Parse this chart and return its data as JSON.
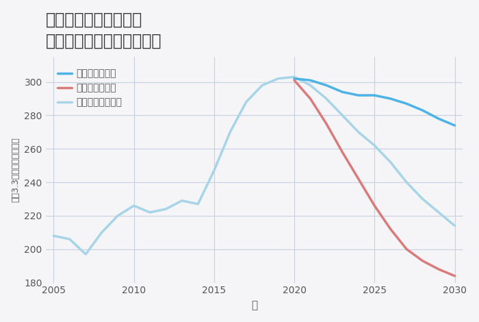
{
  "title_line1": "神奈川県横浜市西区の",
  "title_line2": "中古マンションの価格推移",
  "xlabel": "年",
  "ylabel": "坪（3.3㎡）単価（万円）",
  "background_color": "#f5f5f8",
  "plot_background": "#f5f5f8",
  "grid_color": "#c8d0e0",
  "ylim": [
    180,
    315
  ],
  "xlim": [
    2004.5,
    2030.5
  ],
  "yticks": [
    180,
    200,
    220,
    240,
    260,
    280,
    300
  ],
  "xticks": [
    2005,
    2010,
    2015,
    2020,
    2025,
    2030
  ],
  "good_scenario": {
    "label": "グッドシナリオ",
    "color": "#4db3e6",
    "linewidth": 2.5,
    "x": [
      2020,
      2021,
      2022,
      2023,
      2024,
      2025,
      2026,
      2027,
      2028,
      2029,
      2030
    ],
    "y": [
      302,
      301,
      298,
      294,
      292,
      292,
      290,
      287,
      283,
      278,
      274
    ]
  },
  "bad_scenario": {
    "label": "バッドシナリオ",
    "color": "#d97b7b",
    "linewidth": 2.5,
    "x": [
      2020,
      2021,
      2022,
      2023,
      2024,
      2025,
      2026,
      2027,
      2028,
      2029,
      2030
    ],
    "y": [
      301,
      290,
      275,
      258,
      242,
      226,
      212,
      200,
      193,
      188,
      184
    ]
  },
  "normal_scenario": {
    "label": "ノーマルシナリオ",
    "color": "#a8d4e8",
    "linewidth": 2.5,
    "x": [
      2005,
      2006,
      2007,
      2008,
      2009,
      2010,
      2011,
      2012,
      2013,
      2014,
      2015,
      2016,
      2017,
      2018,
      2019,
      2020,
      2021,
      2022,
      2023,
      2024,
      2025,
      2026,
      2027,
      2028,
      2029,
      2030
    ],
    "y": [
      208,
      206,
      197,
      210,
      220,
      226,
      222,
      224,
      229,
      227,
      247,
      270,
      288,
      298,
      302,
      303,
      298,
      290,
      280,
      270,
      262,
      252,
      240,
      230,
      222,
      214
    ]
  }
}
